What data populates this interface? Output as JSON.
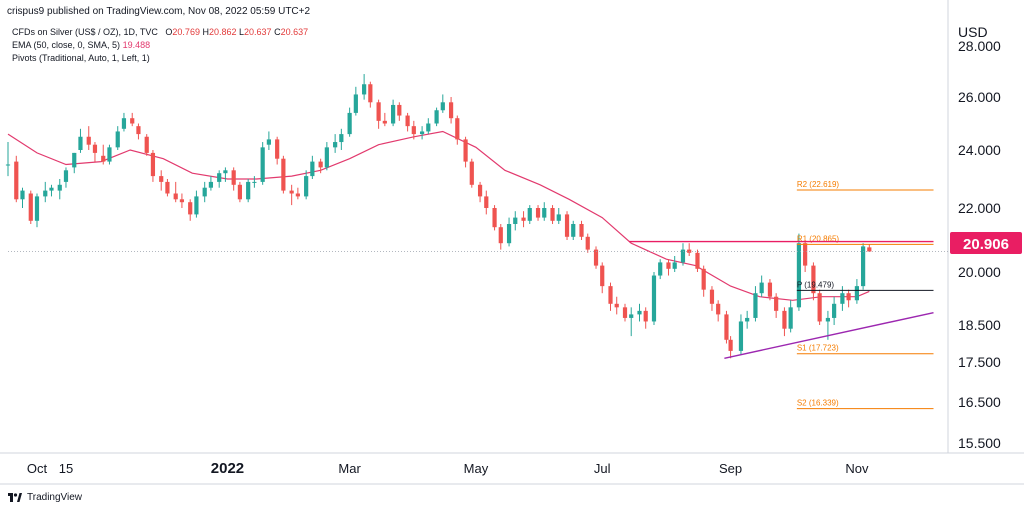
{
  "header": {
    "published": "crispus9 published on TradingView.com, Nov 08, 2022 05:59 UTC+2"
  },
  "legend": {
    "symbol": "CFDs on Silver (US$ / OZ), 1D, TVC",
    "o": "O",
    "o_val": "20.769",
    "h": "H",
    "h_val": "20.862",
    "l": "L",
    "l_val": "20.637",
    "c": "C",
    "c_val": "20.637",
    "ema_label": "EMA (50, close, 0, SMA, 5)",
    "ema_value": "19.488",
    "pivots_label": "Pivots (Traditional, Auto, 1, Left, 1)"
  },
  "footer": {
    "brand": "TradingView",
    "logo_icon": "tradingview-logo-icon"
  },
  "colors": {
    "up": "#26a69a",
    "down": "#ef5350",
    "ema": "#e23a6e",
    "resistance": "#e91e63",
    "trendline": "#9c27b0",
    "pivot_orange": "#f57c00",
    "pivot_black": "#131722",
    "price_badge": "#e91e63"
  },
  "chart_data": {
    "type": "candlestick",
    "currency_label": "USD",
    "price_badge": "20.906",
    "y_ticks": [
      "28.000",
      "26.000",
      "24.000",
      "22.000",
      "20.000",
      "18.500",
      "17.500",
      "16.500",
      "15.500"
    ],
    "x_ticks": [
      "Oct",
      "15",
      "2022",
      "Mar",
      "May",
      "Jul",
      "Sep",
      "Nov"
    ],
    "x_range": [
      "2021-09-17",
      "2022-12-15"
    ],
    "candles": [
      {
        "d": "2021-09-17",
        "o": 23.5,
        "h": 24.3,
        "l": 23.1,
        "c": 23.5
      },
      {
        "d": "2021-09-21",
        "o": 23.6,
        "h": 23.8,
        "l": 22.2,
        "c": 22.3
      },
      {
        "d": "2021-09-24",
        "o": 22.3,
        "h": 22.7,
        "l": 22.0,
        "c": 22.6
      },
      {
        "d": "2021-09-28",
        "o": 22.5,
        "h": 22.6,
        "l": 21.5,
        "c": 21.6
      },
      {
        "d": "2021-10-01",
        "o": 21.6,
        "h": 22.5,
        "l": 21.4,
        "c": 22.4
      },
      {
        "d": "2021-10-05",
        "o": 22.4,
        "h": 22.9,
        "l": 22.2,
        "c": 22.6
      },
      {
        "d": "2021-10-08",
        "o": 22.6,
        "h": 22.8,
        "l": 22.4,
        "c": 22.7
      },
      {
        "d": "2021-10-12",
        "o": 22.6,
        "h": 23.0,
        "l": 22.3,
        "c": 22.8
      },
      {
        "d": "2021-10-15",
        "o": 22.9,
        "h": 23.4,
        "l": 22.7,
        "c": 23.3
      },
      {
        "d": "2021-10-19",
        "o": 23.4,
        "h": 23.9,
        "l": 23.2,
        "c": 23.9
      },
      {
        "d": "2021-10-22",
        "o": 24.0,
        "h": 24.8,
        "l": 23.9,
        "c": 24.5
      },
      {
        "d": "2021-10-26",
        "o": 24.5,
        "h": 24.9,
        "l": 24.0,
        "c": 24.2
      },
      {
        "d": "2021-10-29",
        "o": 24.2,
        "h": 24.3,
        "l": 23.6,
        "c": 23.9
      },
      {
        "d": "2021-11-02",
        "o": 23.8,
        "h": 24.2,
        "l": 23.5,
        "c": 23.6
      },
      {
        "d": "2021-11-05",
        "o": 23.6,
        "h": 24.2,
        "l": 23.5,
        "c": 24.1
      },
      {
        "d": "2021-11-09",
        "o": 24.1,
        "h": 24.9,
        "l": 24.0,
        "c": 24.7
      },
      {
        "d": "2021-11-12",
        "o": 24.8,
        "h": 25.4,
        "l": 24.7,
        "c": 25.2
      },
      {
        "d": "2021-11-16",
        "o": 25.2,
        "h": 25.4,
        "l": 24.9,
        "c": 25.0
      },
      {
        "d": "2021-11-19",
        "o": 24.9,
        "h": 25.0,
        "l": 24.4,
        "c": 24.6
      },
      {
        "d": "2021-11-23",
        "o": 24.5,
        "h": 24.6,
        "l": 23.8,
        "c": 23.9
      },
      {
        "d": "2021-11-26",
        "o": 23.9,
        "h": 24.0,
        "l": 22.9,
        "c": 23.1
      },
      {
        "d": "2021-11-30",
        "o": 23.1,
        "h": 23.3,
        "l": 22.6,
        "c": 22.9
      },
      {
        "d": "2021-12-03",
        "o": 22.9,
        "h": 23.0,
        "l": 22.4,
        "c": 22.5
      },
      {
        "d": "2021-12-07",
        "o": 22.5,
        "h": 22.9,
        "l": 22.2,
        "c": 22.3
      },
      {
        "d": "2021-12-10",
        "o": 22.3,
        "h": 22.5,
        "l": 22.0,
        "c": 22.2
      },
      {
        "d": "2021-12-14",
        "o": 22.2,
        "h": 22.3,
        "l": 21.6,
        "c": 21.8
      },
      {
        "d": "2021-12-17",
        "o": 21.8,
        "h": 22.6,
        "l": 21.7,
        "c": 22.4
      },
      {
        "d": "2021-12-21",
        "o": 22.4,
        "h": 22.9,
        "l": 22.2,
        "c": 22.7
      },
      {
        "d": "2021-12-24",
        "o": 22.7,
        "h": 23.1,
        "l": 22.6,
        "c": 22.9
      },
      {
        "d": "2021-12-28",
        "o": 22.9,
        "h": 23.3,
        "l": 22.7,
        "c": 23.2
      },
      {
        "d": "2021-12-31",
        "o": 23.2,
        "h": 23.4,
        "l": 22.9,
        "c": 23.3
      },
      {
        "d": "2022-01-04",
        "o": 23.3,
        "h": 23.4,
        "l": 22.6,
        "c": 22.8
      },
      {
        "d": "2022-01-07",
        "o": 22.8,
        "h": 22.9,
        "l": 22.2,
        "c": 22.3
      },
      {
        "d": "2022-01-11",
        "o": 22.3,
        "h": 23.0,
        "l": 22.2,
        "c": 22.9
      },
      {
        "d": "2022-01-14",
        "o": 22.9,
        "h": 23.1,
        "l": 22.7,
        "c": 22.9
      },
      {
        "d": "2022-01-18",
        "o": 22.9,
        "h": 24.3,
        "l": 22.8,
        "c": 24.1
      },
      {
        "d": "2022-01-21",
        "o": 24.2,
        "h": 24.7,
        "l": 24.0,
        "c": 24.4
      },
      {
        "d": "2022-01-25",
        "o": 24.4,
        "h": 24.5,
        "l": 23.5,
        "c": 23.7
      },
      {
        "d": "2022-01-28",
        "o": 23.7,
        "h": 23.8,
        "l": 22.5,
        "c": 22.6
      },
      {
        "d": "2022-02-01",
        "o": 22.6,
        "h": 22.8,
        "l": 22.1,
        "c": 22.5
      },
      {
        "d": "2022-02-04",
        "o": 22.5,
        "h": 22.7,
        "l": 22.3,
        "c": 22.4
      },
      {
        "d": "2022-02-08",
        "o": 22.4,
        "h": 23.3,
        "l": 22.3,
        "c": 23.1
      },
      {
        "d": "2022-02-11",
        "o": 23.1,
        "h": 23.8,
        "l": 23.0,
        "c": 23.6
      },
      {
        "d": "2022-02-15",
        "o": 23.6,
        "h": 23.7,
        "l": 23.2,
        "c": 23.4
      },
      {
        "d": "2022-02-18",
        "o": 23.4,
        "h": 24.3,
        "l": 23.3,
        "c": 24.1
      },
      {
        "d": "2022-02-22",
        "o": 24.1,
        "h": 24.6,
        "l": 23.9,
        "c": 24.3
      },
      {
        "d": "2022-02-25",
        "o": 24.3,
        "h": 24.8,
        "l": 24.0,
        "c": 24.6
      },
      {
        "d": "2022-03-01",
        "o": 24.6,
        "h": 25.6,
        "l": 24.5,
        "c": 25.4
      },
      {
        "d": "2022-03-04",
        "o": 25.4,
        "h": 26.4,
        "l": 25.3,
        "c": 26.1
      },
      {
        "d": "2022-03-08",
        "o": 26.1,
        "h": 26.9,
        "l": 25.9,
        "c": 26.5
      },
      {
        "d": "2022-03-11",
        "o": 26.5,
        "h": 26.6,
        "l": 25.6,
        "c": 25.8
      },
      {
        "d": "2022-03-15",
        "o": 25.8,
        "h": 25.9,
        "l": 24.8,
        "c": 25.1
      },
      {
        "d": "2022-03-18",
        "o": 25.1,
        "h": 25.4,
        "l": 24.9,
        "c": 25.0
      },
      {
        "d": "2022-03-22",
        "o": 25.0,
        "h": 25.9,
        "l": 24.9,
        "c": 25.7
      },
      {
        "d": "2022-03-25",
        "o": 25.7,
        "h": 25.8,
        "l": 25.1,
        "c": 25.3
      },
      {
        "d": "2022-03-29",
        "o": 25.3,
        "h": 25.4,
        "l": 24.7,
        "c": 24.9
      },
      {
        "d": "2022-04-01",
        "o": 24.9,
        "h": 25.1,
        "l": 24.4,
        "c": 24.6
      },
      {
        "d": "2022-04-05",
        "o": 24.6,
        "h": 24.9,
        "l": 24.4,
        "c": 24.7
      },
      {
        "d": "2022-04-08",
        "o": 24.7,
        "h": 25.2,
        "l": 24.6,
        "c": 25.0
      },
      {
        "d": "2022-04-12",
        "o": 25.0,
        "h": 25.6,
        "l": 24.9,
        "c": 25.5
      },
      {
        "d": "2022-04-15",
        "o": 25.5,
        "h": 26.1,
        "l": 25.4,
        "c": 25.8
      },
      {
        "d": "2022-04-19",
        "o": 25.8,
        "h": 26.0,
        "l": 25.0,
        "c": 25.2
      },
      {
        "d": "2022-04-22",
        "o": 25.2,
        "h": 25.3,
        "l": 24.2,
        "c": 24.4
      },
      {
        "d": "2022-04-26",
        "o": 24.4,
        "h": 24.5,
        "l": 23.4,
        "c": 23.6
      },
      {
        "d": "2022-04-29",
        "o": 23.6,
        "h": 23.7,
        "l": 22.7,
        "c": 22.8
      },
      {
        "d": "2022-05-03",
        "o": 22.8,
        "h": 22.9,
        "l": 22.2,
        "c": 22.4
      },
      {
        "d": "2022-05-06",
        "o": 22.4,
        "h": 22.6,
        "l": 21.8,
        "c": 22.0
      },
      {
        "d": "2022-05-10",
        "o": 22.0,
        "h": 22.1,
        "l": 21.3,
        "c": 21.4
      },
      {
        "d": "2022-05-13",
        "o": 21.4,
        "h": 21.5,
        "l": 20.7,
        "c": 20.9
      },
      {
        "d": "2022-05-17",
        "o": 20.9,
        "h": 21.7,
        "l": 20.8,
        "c": 21.5
      },
      {
        "d": "2022-05-20",
        "o": 21.5,
        "h": 21.9,
        "l": 21.3,
        "c": 21.7
      },
      {
        "d": "2022-05-24",
        "o": 21.7,
        "h": 21.9,
        "l": 21.4,
        "c": 21.6
      },
      {
        "d": "2022-05-27",
        "o": 21.6,
        "h": 22.1,
        "l": 21.5,
        "c": 22.0
      },
      {
        "d": "2022-05-31",
        "o": 22.0,
        "h": 22.1,
        "l": 21.6,
        "c": 21.7
      },
      {
        "d": "2022-06-03",
        "o": 21.7,
        "h": 22.2,
        "l": 21.6,
        "c": 22.0
      },
      {
        "d": "2022-06-07",
        "o": 22.0,
        "h": 22.1,
        "l": 21.5,
        "c": 21.6
      },
      {
        "d": "2022-06-10",
        "o": 21.6,
        "h": 22.0,
        "l": 21.5,
        "c": 21.8
      },
      {
        "d": "2022-06-14",
        "o": 21.8,
        "h": 21.9,
        "l": 21.0,
        "c": 21.1
      },
      {
        "d": "2022-06-17",
        "o": 21.1,
        "h": 21.6,
        "l": 21.0,
        "c": 21.5
      },
      {
        "d": "2022-06-21",
        "o": 21.5,
        "h": 21.6,
        "l": 21.0,
        "c": 21.1
      },
      {
        "d": "2022-06-24",
        "o": 21.1,
        "h": 21.2,
        "l": 20.6,
        "c": 20.7
      },
      {
        "d": "2022-06-28",
        "o": 20.7,
        "h": 20.8,
        "l": 20.1,
        "c": 20.2
      },
      {
        "d": "2022-07-01",
        "o": 20.2,
        "h": 20.3,
        "l": 19.4,
        "c": 19.6
      },
      {
        "d": "2022-07-05",
        "o": 19.6,
        "h": 19.7,
        "l": 18.9,
        "c": 19.1
      },
      {
        "d": "2022-07-08",
        "o": 19.1,
        "h": 19.3,
        "l": 18.8,
        "c": 19.0
      },
      {
        "d": "2022-07-12",
        "o": 19.0,
        "h": 19.1,
        "l": 18.6,
        "c": 18.7
      },
      {
        "d": "2022-07-15",
        "o": 18.7,
        "h": 19.0,
        "l": 18.2,
        "c": 18.8
      },
      {
        "d": "2022-07-19",
        "o": 18.8,
        "h": 19.1,
        "l": 18.6,
        "c": 18.9
      },
      {
        "d": "2022-07-22",
        "o": 18.9,
        "h": 19.0,
        "l": 18.4,
        "c": 18.6
      },
      {
        "d": "2022-07-26",
        "o": 18.6,
        "h": 20.0,
        "l": 18.5,
        "c": 19.9
      },
      {
        "d": "2022-07-29",
        "o": 19.9,
        "h": 20.4,
        "l": 19.8,
        "c": 20.3
      },
      {
        "d": "2022-08-02",
        "o": 20.3,
        "h": 20.4,
        "l": 19.9,
        "c": 20.1
      },
      {
        "d": "2022-08-05",
        "o": 20.1,
        "h": 20.5,
        "l": 20.0,
        "c": 20.3
      },
      {
        "d": "2022-08-09",
        "o": 20.3,
        "h": 20.9,
        "l": 20.2,
        "c": 20.7
      },
      {
        "d": "2022-08-12",
        "o": 20.7,
        "h": 20.9,
        "l": 20.5,
        "c": 20.6
      },
      {
        "d": "2022-08-16",
        "o": 20.6,
        "h": 20.7,
        "l": 20.0,
        "c": 20.1
      },
      {
        "d": "2022-08-19",
        "o": 20.1,
        "h": 20.2,
        "l": 19.3,
        "c": 19.5
      },
      {
        "d": "2022-08-23",
        "o": 19.5,
        "h": 19.6,
        "l": 18.9,
        "c": 19.1
      },
      {
        "d": "2022-08-26",
        "o": 19.1,
        "h": 19.2,
        "l": 18.6,
        "c": 18.8
      },
      {
        "d": "2022-08-30",
        "o": 18.8,
        "h": 18.9,
        "l": 18.0,
        "c": 18.1
      },
      {
        "d": "2022-09-01",
        "o": 18.1,
        "h": 18.2,
        "l": 17.6,
        "c": 17.8
      },
      {
        "d": "2022-09-06",
        "o": 17.8,
        "h": 18.8,
        "l": 17.7,
        "c": 18.6
      },
      {
        "d": "2022-09-09",
        "o": 18.6,
        "h": 18.9,
        "l": 18.4,
        "c": 18.7
      },
      {
        "d": "2022-09-13",
        "o": 18.7,
        "h": 19.6,
        "l": 18.6,
        "c": 19.4
      },
      {
        "d": "2022-09-16",
        "o": 19.4,
        "h": 19.9,
        "l": 19.3,
        "c": 19.7
      },
      {
        "d": "2022-09-20",
        "o": 19.7,
        "h": 19.8,
        "l": 19.2,
        "c": 19.3
      },
      {
        "d": "2022-09-23",
        "o": 19.3,
        "h": 19.4,
        "l": 18.7,
        "c": 18.9
      },
      {
        "d": "2022-09-27",
        "o": 18.9,
        "h": 19.0,
        "l": 18.2,
        "c": 18.4
      },
      {
        "d": "2022-09-30",
        "o": 18.4,
        "h": 19.2,
        "l": 18.3,
        "c": 19.0
      },
      {
        "d": "2022-10-04",
        "o": 19.0,
        "h": 21.2,
        "l": 18.9,
        "c": 20.9
      },
      {
        "d": "2022-10-07",
        "o": 20.9,
        "h": 21.0,
        "l": 20.0,
        "c": 20.2
      },
      {
        "d": "2022-10-11",
        "o": 20.2,
        "h": 20.3,
        "l": 19.2,
        "c": 19.4
      },
      {
        "d": "2022-10-14",
        "o": 19.4,
        "h": 19.5,
        "l": 18.5,
        "c": 18.6
      },
      {
        "d": "2022-10-18",
        "o": 18.6,
        "h": 18.9,
        "l": 18.1,
        "c": 18.7
      },
      {
        "d": "2022-10-21",
        "o": 18.7,
        "h": 19.3,
        "l": 18.5,
        "c": 19.1
      },
      {
        "d": "2022-10-25",
        "o": 19.1,
        "h": 19.6,
        "l": 18.9,
        "c": 19.4
      },
      {
        "d": "2022-10-28",
        "o": 19.4,
        "h": 19.5,
        "l": 19.0,
        "c": 19.2
      },
      {
        "d": "2022-11-01",
        "o": 19.2,
        "h": 19.8,
        "l": 19.1,
        "c": 19.6
      },
      {
        "d": "2022-11-04",
        "o": 19.6,
        "h": 20.9,
        "l": 19.5,
        "c": 20.8
      },
      {
        "d": "2022-11-07",
        "o": 20.77,
        "h": 20.86,
        "l": 20.64,
        "c": 20.64
      }
    ],
    "ema": [
      {
        "d": "2021-09-17",
        "v": 24.6
      },
      {
        "d": "2021-10-01",
        "v": 23.9
      },
      {
        "d": "2021-10-15",
        "v": 23.5
      },
      {
        "d": "2021-11-01",
        "v": 23.6
      },
      {
        "d": "2021-11-15",
        "v": 24.0
      },
      {
        "d": "2021-12-01",
        "v": 23.7
      },
      {
        "d": "2021-12-15",
        "v": 23.2
      },
      {
        "d": "2022-01-01",
        "v": 23.0
      },
      {
        "d": "2022-01-15",
        "v": 23.0
      },
      {
        "d": "2022-02-01",
        "v": 23.1
      },
      {
        "d": "2022-02-15",
        "v": 23.3
      },
      {
        "d": "2022-03-01",
        "v": 23.7
      },
      {
        "d": "2022-03-15",
        "v": 24.2
      },
      {
        "d": "2022-04-01",
        "v": 24.5
      },
      {
        "d": "2022-04-15",
        "v": 24.7
      },
      {
        "d": "2022-05-01",
        "v": 24.1
      },
      {
        "d": "2022-05-15",
        "v": 23.3
      },
      {
        "d": "2022-06-01",
        "v": 22.8
      },
      {
        "d": "2022-06-15",
        "v": 22.3
      },
      {
        "d": "2022-07-01",
        "v": 21.7
      },
      {
        "d": "2022-07-15",
        "v": 20.9
      },
      {
        "d": "2022-08-01",
        "v": 20.4
      },
      {
        "d": "2022-08-15",
        "v": 20.2
      },
      {
        "d": "2022-09-01",
        "v": 19.6
      },
      {
        "d": "2022-09-15",
        "v": 19.3
      },
      {
        "d": "2022-10-01",
        "v": 19.2
      },
      {
        "d": "2022-10-15",
        "v": 19.3
      },
      {
        "d": "2022-11-01",
        "v": 19.3
      },
      {
        "d": "2022-11-07",
        "v": 19.45
      }
    ],
    "pivots": [
      {
        "label": "R2 (22.619)",
        "value": 22.619,
        "color": "orange"
      },
      {
        "label": "R1 (20.865)",
        "value": 20.865,
        "color": "orange"
      },
      {
        "label": "P (19.479)",
        "value": 19.479,
        "color": "black"
      },
      {
        "label": "S1 (17.723)",
        "value": 17.723,
        "color": "orange"
      },
      {
        "label": "S2 (16.339)",
        "value": 16.339,
        "color": "orange"
      }
    ],
    "pivot_range": [
      "2022-10-03",
      "2022-12-08"
    ],
    "resistance_line": {
      "from": "2022-07-14",
      "to": "2022-12-08",
      "value": 20.95
    },
    "trendline": {
      "from": {
        "d": "2022-08-29",
        "v": 17.6
      },
      "to": {
        "d": "2022-12-08",
        "v": 18.85
      }
    },
    "last_price_line": {
      "value": 20.637,
      "dashed": true
    }
  }
}
